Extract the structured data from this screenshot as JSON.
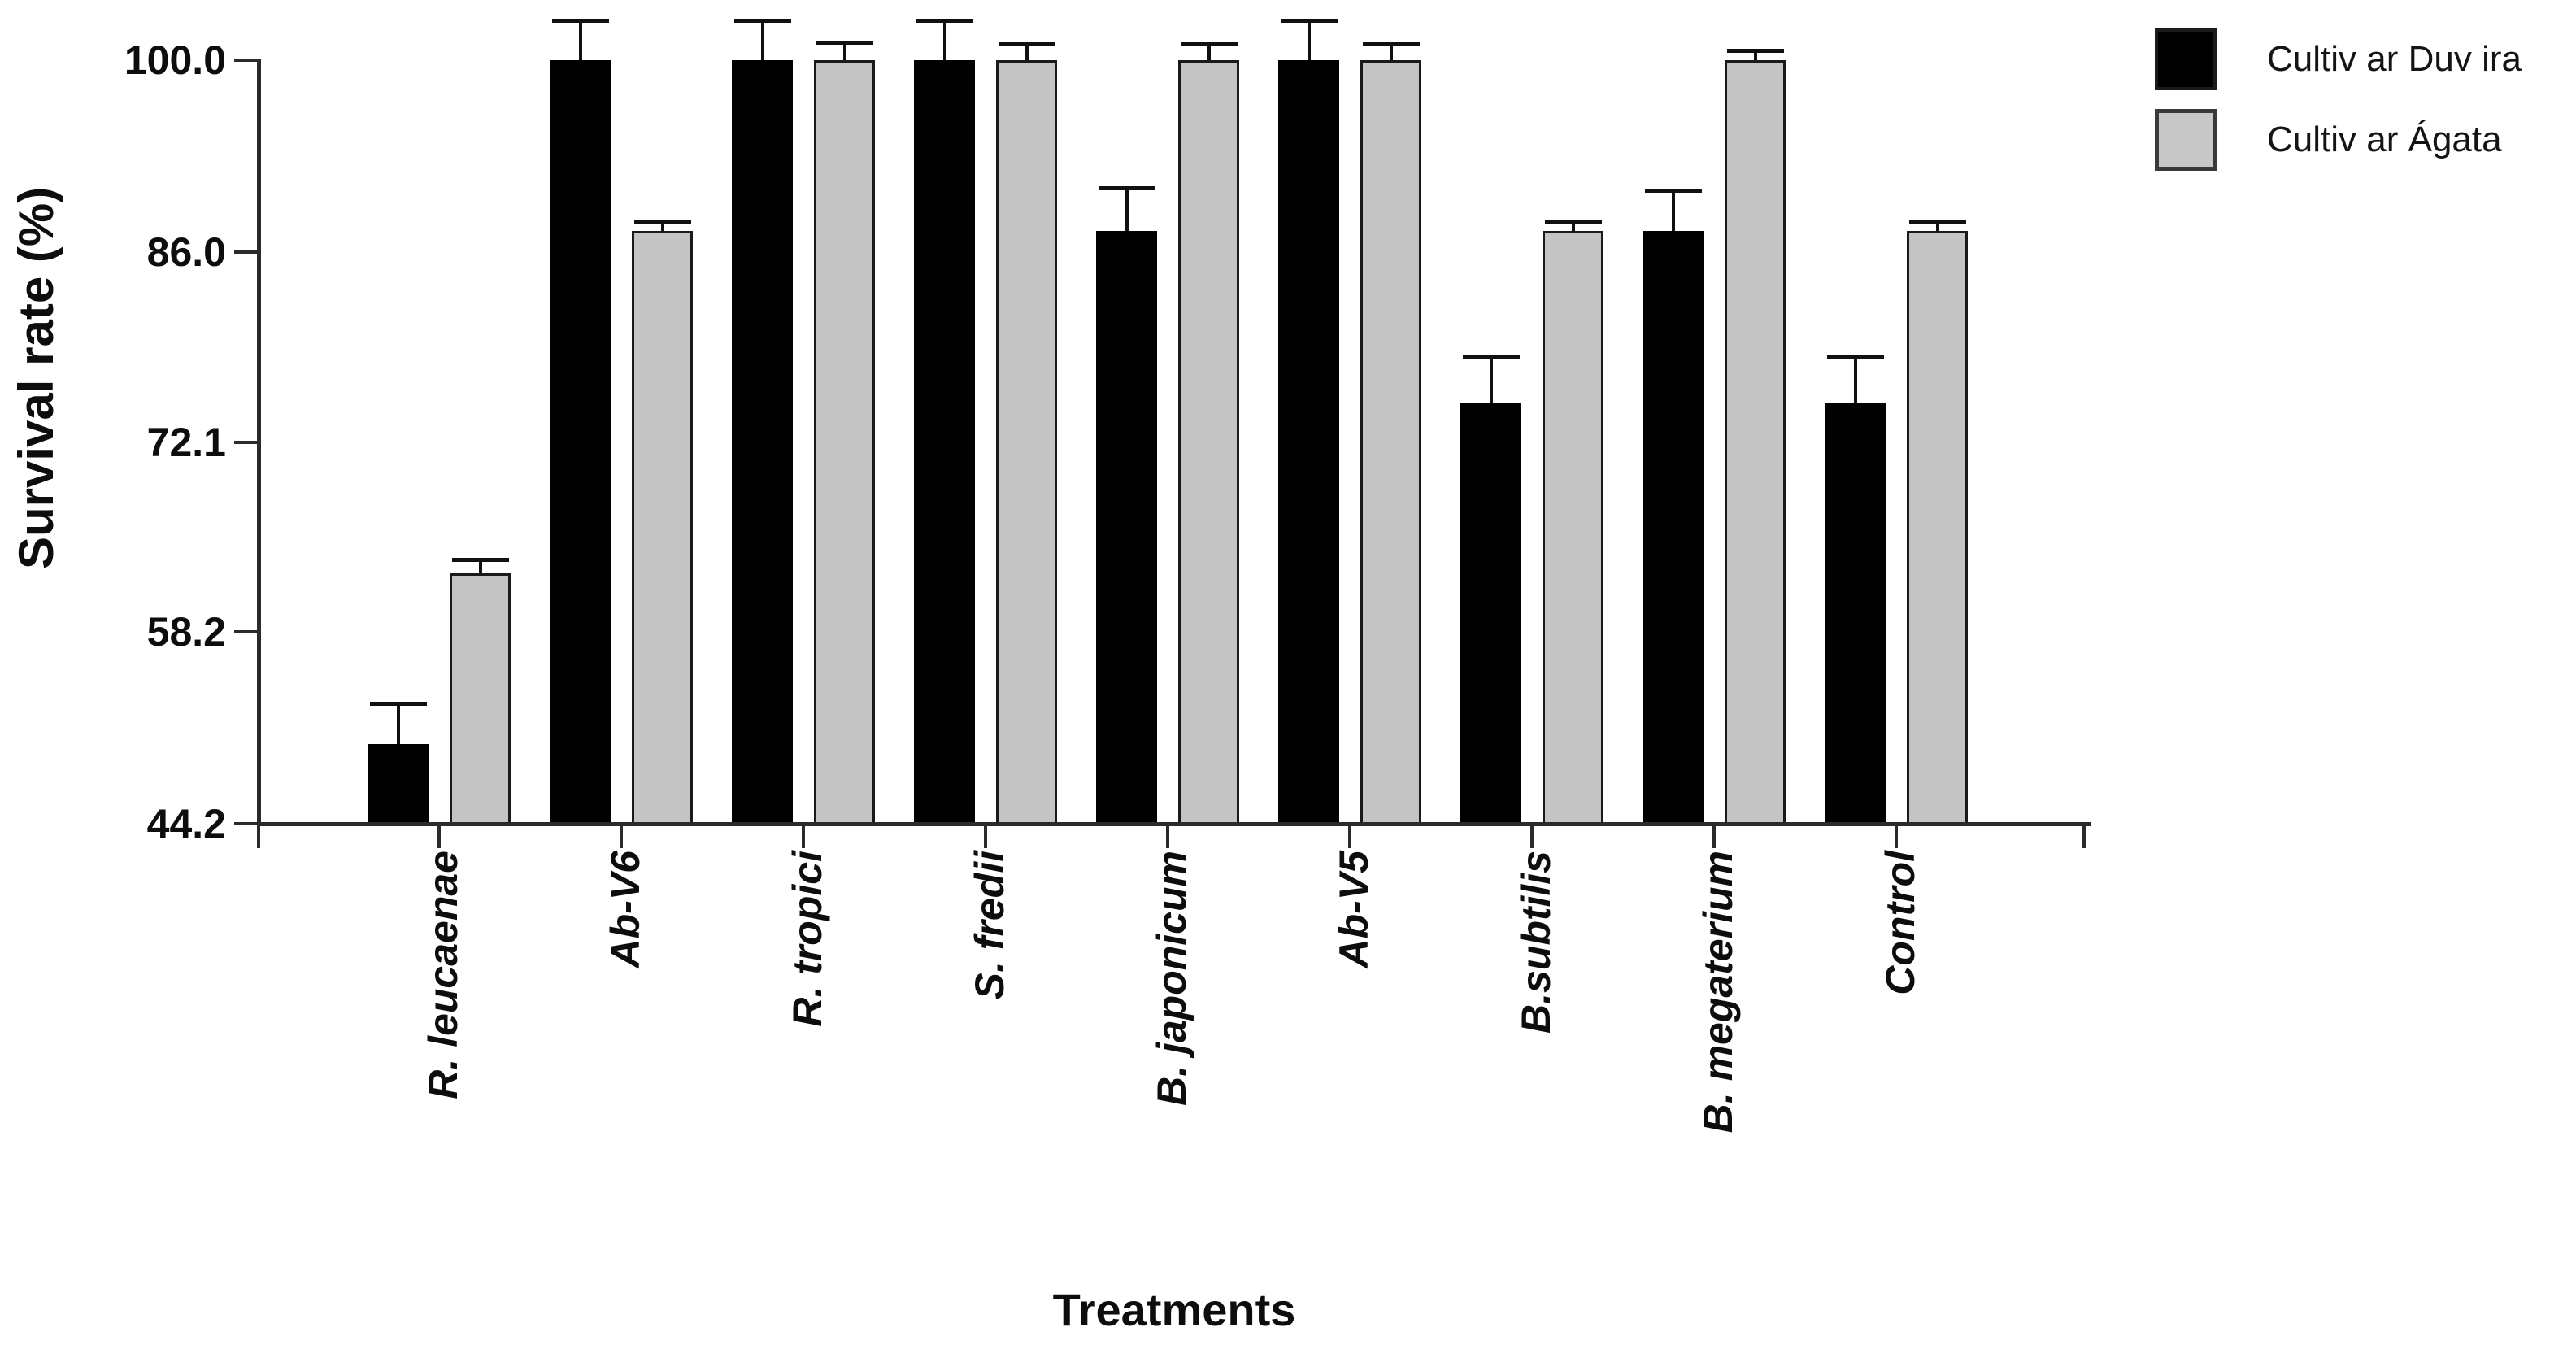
{
  "chart_data": {
    "type": "bar",
    "title": "",
    "xlabel": "Treatments",
    "ylabel": "Survival rate (%)",
    "categories": [
      "R. leucaenae",
      "Ab-V6",
      "R. tropici",
      "S. fredii",
      "B. japonicum",
      "Ab-V5",
      "B.subtilis",
      "B. megaterium",
      "Control"
    ],
    "series": [
      {
        "name": "Cultiv ar Duv ira",
        "color": "#000000",
        "values": [
          50.0,
          100.0,
          100.0,
          100.0,
          87.5,
          100.0,
          75.0,
          87.5,
          75.0
        ],
        "errors_up": [
          3.0,
          2.9,
          2.9,
          2.9,
          3.2,
          2.9,
          3.3,
          3.0,
          3.3
        ]
      },
      {
        "name": "Cultiv ar Ágata",
        "color": "#c4c4c4",
        "values": [
          62.5,
          87.5,
          100.0,
          100.0,
          100.0,
          100.0,
          87.5,
          100.0,
          87.5
        ],
        "errors_up": [
          1.0,
          0.7,
          1.3,
          1.2,
          1.2,
          1.2,
          0.7,
          0.7,
          0.7
        ]
      }
    ],
    "y_ticks": [
      100.0,
      86.0,
      72.1,
      58.2,
      44.2
    ],
    "y_tick_labels": [
      "100.0",
      "86.0",
      "72.1",
      "58.2",
      "44.2"
    ],
    "ylim": [
      44.2,
      100.0
    ],
    "grid": false,
    "error_bars": "upper-only",
    "legend_position": "top-right"
  }
}
